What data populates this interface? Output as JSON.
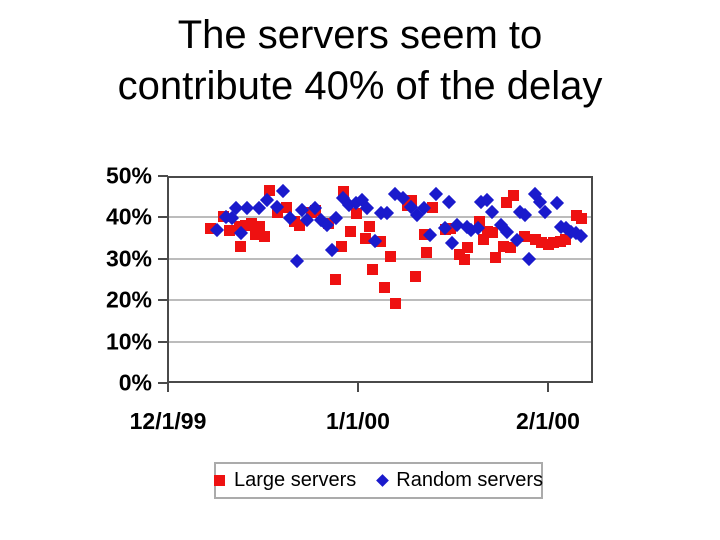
{
  "slide": {
    "title_line1": "The servers seem to",
    "title_line2": "contribute 40% of the delay"
  },
  "chart_data": {
    "type": "scatter",
    "title": "",
    "xlabel": "",
    "ylabel": "",
    "grid": "horizontal-only",
    "legend_position": "bottom",
    "ylim": [
      0,
      50
    ],
    "y_tick_labels": [
      "50%",
      "40%",
      "30%",
      "20%",
      "10%",
      "0%"
    ],
    "y_tick_values": [
      50,
      40,
      30,
      20,
      10,
      0
    ],
    "x_tick_labels": [
      "12/1/99",
      "1/1/00",
      "2/1/00"
    ],
    "x_tick_day_offsets": [
      0,
      31,
      62
    ],
    "x_axis_note": "x values are day offsets from 12/1/99; percent of delay on y",
    "series": [
      {
        "name": "Large servers",
        "marker": "square",
        "color": "#ee1111",
        "points": [
          [
            7,
            37.4
          ],
          [
            9,
            40.3
          ],
          [
            10,
            36.8
          ],
          [
            11.6,
            37.7
          ],
          [
            11.9,
            33.0
          ],
          [
            12.6,
            38.1
          ],
          [
            13.7,
            38.6
          ],
          [
            14.2,
            35.8
          ],
          [
            15,
            37.7
          ],
          [
            15.8,
            35.3
          ],
          [
            16.5,
            46.4
          ],
          [
            17.8,
            41.2
          ],
          [
            19.4,
            42.4
          ],
          [
            20.7,
            38.9
          ],
          [
            21.5,
            38.1
          ],
          [
            23.4,
            41.2
          ],
          [
            24.1,
            41.7
          ],
          [
            26.2,
            38.6
          ],
          [
            27.4,
            25.0
          ],
          [
            28.3,
            32.9
          ],
          [
            28.6,
            46.3
          ],
          [
            29.7,
            36.5
          ],
          [
            30.7,
            41.0
          ],
          [
            32.2,
            35.0
          ],
          [
            32.8,
            37.7
          ],
          [
            33.4,
            27.4
          ],
          [
            34.6,
            34.2
          ],
          [
            35.4,
            23.1
          ],
          [
            36.3,
            30.6
          ],
          [
            37.1,
            19.2
          ],
          [
            39,
            42.9
          ],
          [
            39.7,
            44.1
          ],
          [
            40.4,
            25.8
          ],
          [
            41.8,
            35.8
          ],
          [
            42.1,
            31.5
          ],
          [
            43.1,
            42.4
          ],
          [
            45.2,
            37.0
          ],
          [
            46.1,
            37.4
          ],
          [
            47.5,
            31.0
          ],
          [
            48.3,
            29.9
          ],
          [
            48.9,
            32.7
          ],
          [
            50.9,
            38.9
          ],
          [
            51.5,
            34.6
          ],
          [
            52.2,
            36.5
          ],
          [
            52.9,
            36.3
          ],
          [
            53.4,
            30.3
          ],
          [
            54.7,
            32.9
          ],
          [
            55.3,
            43.6
          ],
          [
            56.3,
            45.2
          ],
          [
            55.8,
            32.7
          ],
          [
            58.1,
            35.3
          ],
          [
            60,
            34.6
          ],
          [
            60.9,
            33.9
          ],
          [
            62,
            33.4
          ],
          [
            62.9,
            33.9
          ],
          [
            64.1,
            34.1
          ],
          [
            64.9,
            34.6
          ],
          [
            66.6,
            40.5
          ],
          [
            67.5,
            39.8
          ]
        ]
      },
      {
        "name": "Random servers",
        "marker": "diamond",
        "color": "#1a1acc",
        "points": [
          [
            8,
            37.0
          ],
          [
            9.4,
            40.0
          ],
          [
            10.5,
            39.8
          ],
          [
            11.1,
            42.2
          ],
          [
            11.9,
            36.3
          ],
          [
            12.9,
            42.2
          ],
          [
            14.8,
            42.2
          ],
          [
            16.1,
            44.1
          ],
          [
            17.8,
            42.5
          ],
          [
            18.7,
            46.4
          ],
          [
            19.9,
            39.8
          ],
          [
            21,
            29.4
          ],
          [
            21.9,
            41.7
          ],
          [
            22.6,
            39.3
          ],
          [
            24,
            42.2
          ],
          [
            25,
            39.3
          ],
          [
            26,
            38.2
          ],
          [
            26.7,
            32.2
          ],
          [
            27.4,
            39.8
          ],
          [
            28.5,
            44.8
          ],
          [
            29.5,
            42.9
          ],
          [
            30.6,
            43.4
          ],
          [
            31.7,
            44.1
          ],
          [
            32.4,
            42.2
          ],
          [
            33.8,
            34.2
          ],
          [
            34.8,
            41.0
          ],
          [
            35.8,
            41.0
          ],
          [
            37,
            45.7
          ],
          [
            38.3,
            44.8
          ],
          [
            39.6,
            42.5
          ],
          [
            40.7,
            40.5
          ],
          [
            41.8,
            42.2
          ],
          [
            42.7,
            35.8
          ],
          [
            43.7,
            45.7
          ],
          [
            45.2,
            37.4
          ],
          [
            45.9,
            43.6
          ],
          [
            46.4,
            33.9
          ],
          [
            47.2,
            38.1
          ],
          [
            48.8,
            37.7
          ],
          [
            49.4,
            37.0
          ],
          [
            50.5,
            37.4
          ],
          [
            51,
            43.6
          ],
          [
            52.1,
            44.1
          ],
          [
            52.9,
            41.2
          ],
          [
            54.4,
            38.2
          ],
          [
            55.3,
            36.5
          ],
          [
            56.9,
            34.6
          ],
          [
            57.4,
            41.2
          ],
          [
            58.2,
            40.5
          ],
          [
            58.9,
            29.9
          ],
          [
            59.9,
            45.7
          ],
          [
            60.7,
            43.6
          ],
          [
            61.5,
            41.2
          ],
          [
            63.4,
            43.4
          ],
          [
            64.2,
            37.7
          ],
          [
            65,
            37.4
          ],
          [
            65.8,
            36.5
          ],
          [
            66.6,
            36.3
          ],
          [
            67.4,
            35.6
          ]
        ]
      }
    ]
  }
}
